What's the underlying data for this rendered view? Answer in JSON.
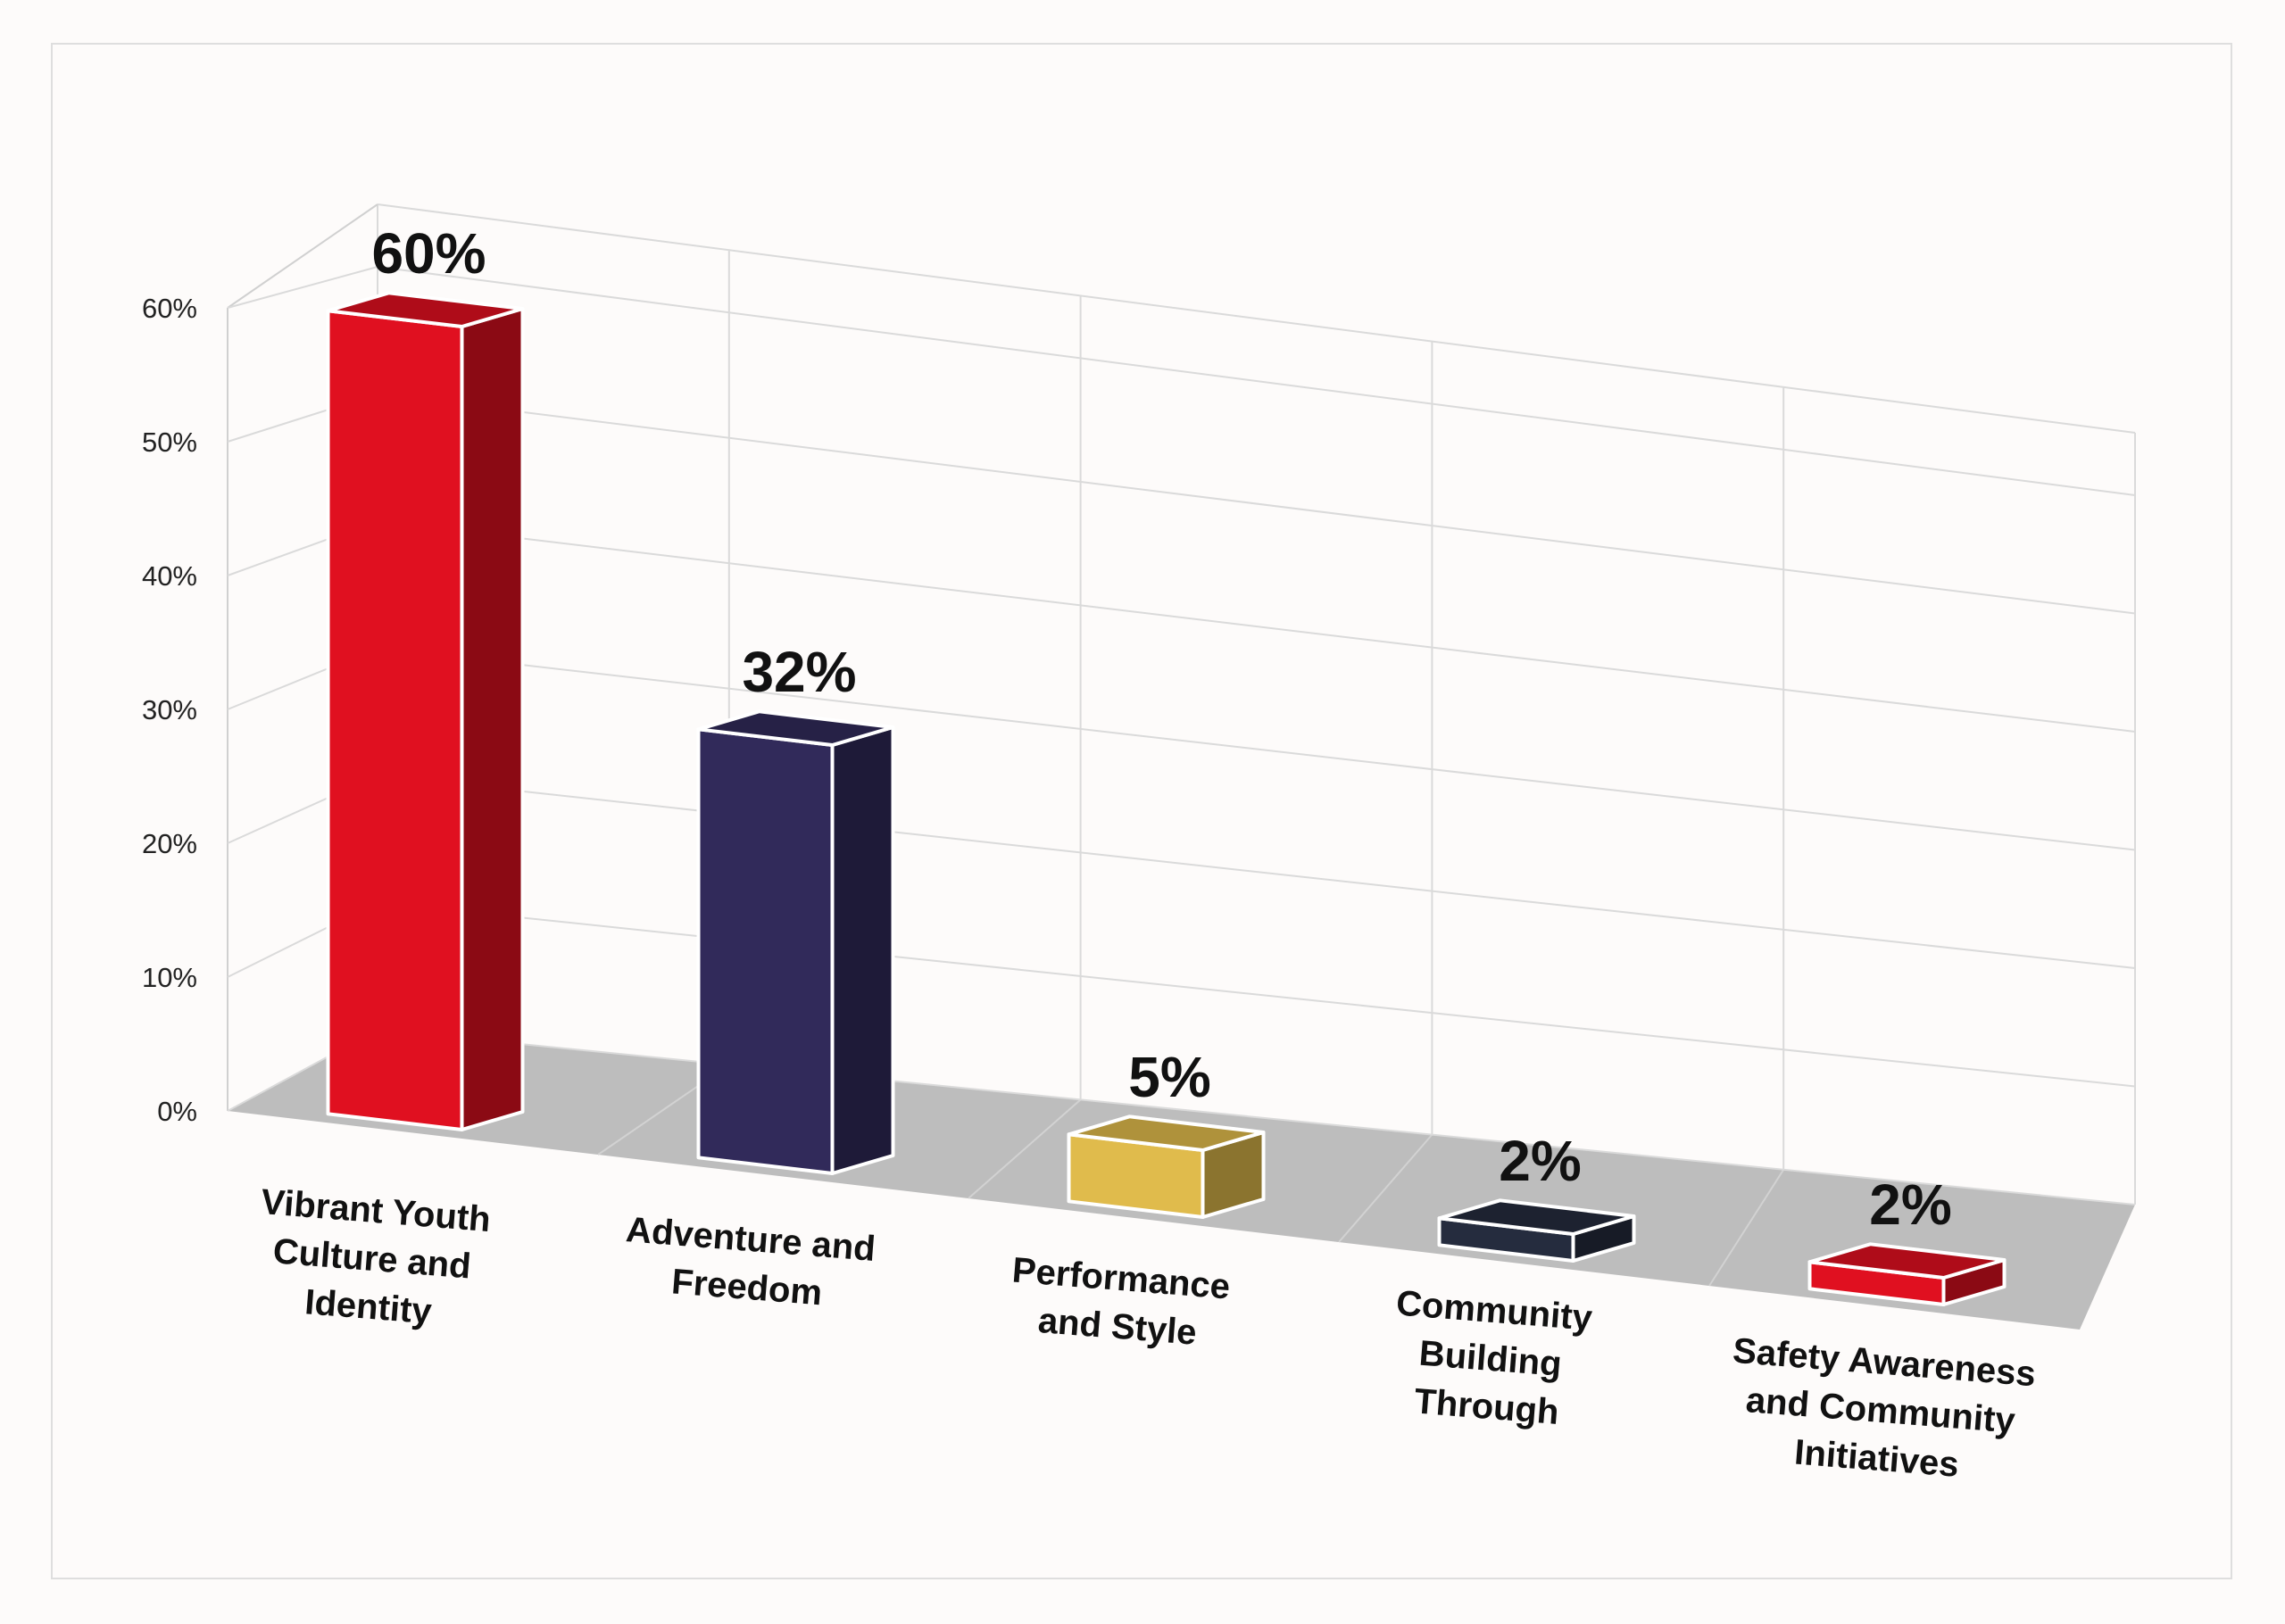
{
  "chart_data": {
    "type": "bar",
    "style": "3d-column",
    "categories": [
      [
        "Vibrant Youth",
        "Culture and",
        "Identity"
      ],
      [
        "Adventure and",
        "Freedom"
      ],
      [
        "Performance",
        "and Style"
      ],
      [
        "Community",
        "Building",
        "Through"
      ],
      [
        "Safety Awareness",
        "and Community",
        "Initiatives"
      ]
    ],
    "values": [
      60,
      32,
      5,
      2,
      2
    ],
    "data_labels": [
      "60%",
      "32%",
      "5%",
      "2%",
      "2%"
    ],
    "colors": [
      "#e01020",
      "#312a5a",
      "#e0bb4c",
      "#252c3e",
      "#e01020"
    ],
    "ylim": [
      0,
      60
    ],
    "yticks": [
      "0%",
      "10%",
      "20%",
      "30%",
      "40%",
      "50%",
      "60%"
    ],
    "grid": true,
    "legend": "none",
    "title": "",
    "xlabel": "",
    "ylabel": ""
  }
}
